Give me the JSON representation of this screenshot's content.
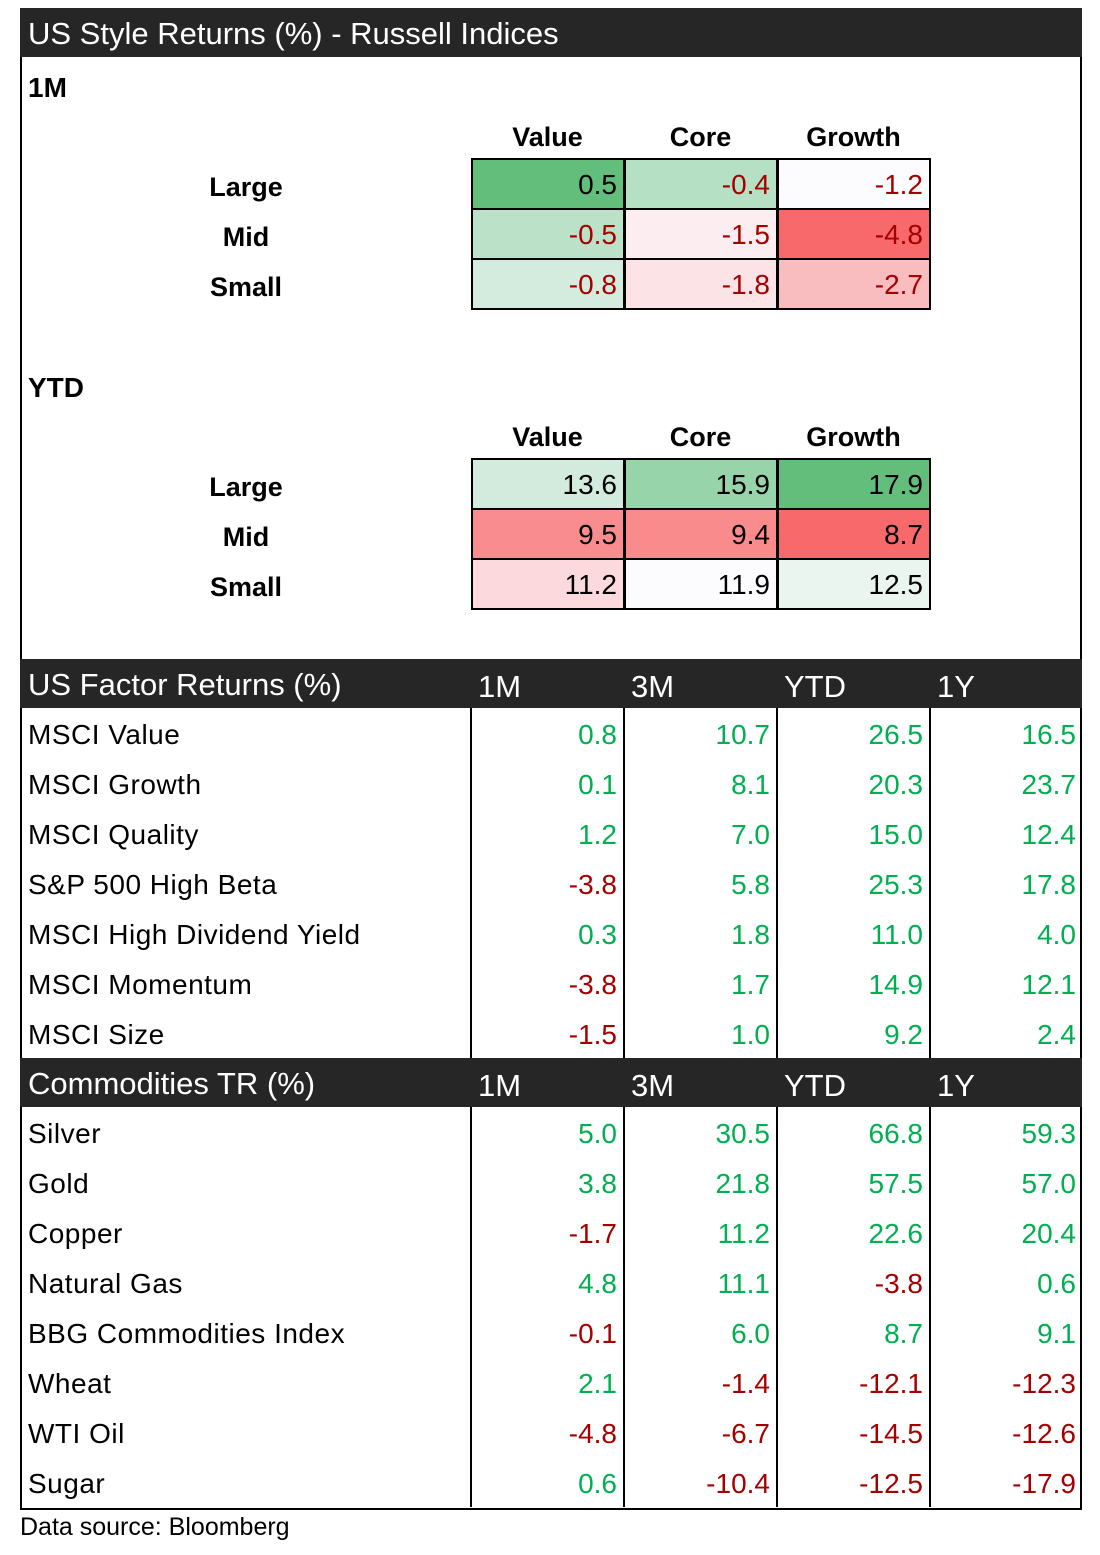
{
  "style": {
    "title": "US Style Returns (%) - Russell Indices",
    "columns": [
      "Value",
      "Core",
      "Growth"
    ],
    "rows": [
      "Large",
      "Mid",
      "Small"
    ],
    "panels": [
      {
        "label": "1M",
        "values": [
          [
            "0.5",
            "-0.4",
            "-1.2"
          ],
          [
            "-0.5",
            "-1.5",
            "-4.8"
          ],
          [
            "-0.8",
            "-1.8",
            "-2.7"
          ]
        ],
        "fills": [
          [
            "#63be7b",
            "#b5e0c3",
            "#fcfcff"
          ],
          [
            "#bbe2c8",
            "#fcedf0",
            "#f8696b"
          ],
          [
            "#d3ecdd",
            "#fbe3e6",
            "#f9bdc0"
          ]
        ],
        "text_colors": [
          [
            "#000000",
            "#a50000",
            "#a50000"
          ],
          [
            "#a50000",
            "#a50000",
            "#a50000"
          ],
          [
            "#a50000",
            "#a50000",
            "#a50000"
          ]
        ]
      },
      {
        "label": "YTD",
        "values": [
          [
            "13.6",
            "15.9",
            "17.9"
          ],
          [
            "9.5",
            "9.4",
            "8.7"
          ],
          [
            "11.2",
            "11.9",
            "12.5"
          ]
        ],
        "fills": [
          [
            "#d2ebdc",
            "#98d4a9",
            "#63be7b"
          ],
          [
            "#f98c8e",
            "#f98b8d",
            "#f8696b"
          ],
          [
            "#fbd9dc",
            "#fcfcff",
            "#ebf5ef"
          ]
        ],
        "text_colors": [
          [
            "#000000",
            "#000000",
            "#000000"
          ],
          [
            "#000000",
            "#000000",
            "#000000"
          ],
          [
            "#000000",
            "#000000",
            "#000000"
          ]
        ]
      }
    ]
  },
  "factor": {
    "title": "US Factor Returns (%)",
    "columns": [
      "1M",
      "3M",
      "YTD",
      "1Y"
    ],
    "rows": [
      {
        "name": "MSCI Value",
        "values": [
          "0.8",
          "10.7",
          "26.5",
          "16.5"
        ]
      },
      {
        "name": "MSCI Growth",
        "values": [
          "0.1",
          "8.1",
          "20.3",
          "23.7"
        ]
      },
      {
        "name": "MSCI Quality",
        "values": [
          "1.2",
          "7.0",
          "15.0",
          "12.4"
        ]
      },
      {
        "name": "S&P 500 High Beta",
        "values": [
          "-3.8",
          "5.8",
          "25.3",
          "17.8"
        ]
      },
      {
        "name": "MSCI High Dividend Yield",
        "values": [
          "0.3",
          "1.8",
          "11.0",
          "4.0"
        ]
      },
      {
        "name": "MSCI Momentum",
        "values": [
          "-3.8",
          "1.7",
          "14.9",
          "12.1"
        ]
      },
      {
        "name": "MSCI Size",
        "values": [
          "-1.5",
          "1.0",
          "9.2",
          "2.4"
        ]
      }
    ]
  },
  "commodities": {
    "title": "Commodities TR (%)",
    "columns": [
      "1M",
      "3M",
      "YTD",
      "1Y"
    ],
    "rows": [
      {
        "name": "Silver",
        "values": [
          "5.0",
          "30.5",
          "66.8",
          "59.3"
        ]
      },
      {
        "name": "Gold",
        "values": [
          "3.8",
          "21.8",
          "57.5",
          "57.0"
        ]
      },
      {
        "name": "Copper",
        "values": [
          "-1.7",
          "11.2",
          "22.6",
          "20.4"
        ]
      },
      {
        "name": "Natural Gas",
        "values": [
          "4.8",
          "11.1",
          "-3.8",
          "0.6"
        ]
      },
      {
        "name": "BBG Commodities Index",
        "values": [
          "-0.1",
          "6.0",
          "8.7",
          "9.1"
        ]
      },
      {
        "name": "Wheat",
        "values": [
          "2.1",
          "-1.4",
          "-12.1",
          "-12.3"
        ]
      },
      {
        "name": "WTI Oil",
        "values": [
          "-4.8",
          "-6.7",
          "-14.5",
          "-12.6"
        ]
      },
      {
        "name": "Sugar",
        "values": [
          "0.6",
          "-10.4",
          "-12.5",
          "-17.9"
        ]
      }
    ]
  },
  "colors": {
    "positive": "#00b050",
    "negative": "#a50000",
    "header_bg": "#262626"
  },
  "source": "Data source: Bloomberg"
}
